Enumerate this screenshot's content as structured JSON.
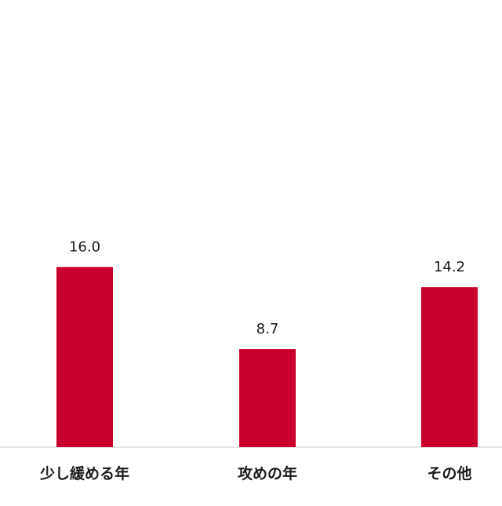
{
  "chart_data": {
    "type": "bar",
    "categories": [
      "少し緩める年",
      "攻めの年",
      "その他"
    ],
    "values": [
      16.0,
      8.7,
      14.2
    ],
    "value_labels": [
      "16.0",
      "8.7",
      "14.2"
    ],
    "ylim": [
      0,
      39.7
    ],
    "grid": false,
    "bar_color": "#c8002c",
    "baseline_color": "#cfcfcf",
    "text_color": "#1a1a1a"
  }
}
